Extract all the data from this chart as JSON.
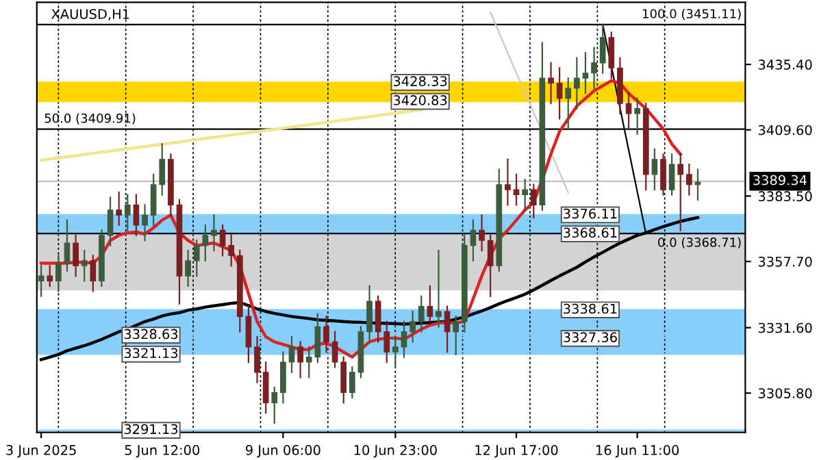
{
  "chart_data": {
    "type": "candlestick",
    "title": "XAUUSD,H1",
    "categories": [
      "3 Jun 2025",
      null,
      null,
      null,
      null,
      null,
      null,
      null,
      null,
      null,
      null,
      null,
      null,
      null,
      "5 Jun 12:00",
      null,
      null,
      null,
      null,
      null,
      null,
      null,
      null,
      null,
      null,
      null,
      null,
      null,
      "9 Jun 06:00",
      null,
      null,
      null,
      null,
      null,
      null,
      null,
      null,
      null,
      null,
      null,
      null,
      "10 Jun 23:00",
      null,
      null,
      null,
      null,
      null,
      null,
      null,
      null,
      null,
      null,
      null,
      null,
      null,
      "12 Jun 17:00",
      null,
      null,
      null,
      null,
      null,
      null,
      null,
      null,
      null,
      null,
      null,
      null,
      null,
      "16 Jun 11:00",
      null,
      null,
      null,
      null,
      null,
      null,
      null
    ],
    "ohlc": [
      [
        3350,
        3356,
        3344,
        3352
      ],
      [
        3352,
        3356,
        3348,
        3350
      ],
      [
        3350,
        3360,
        3346,
        3357
      ],
      [
        3357,
        3374,
        3354,
        3365
      ],
      [
        3365,
        3368,
        3352,
        3356
      ],
      [
        3356,
        3362,
        3350,
        3358
      ],
      [
        3358,
        3360,
        3346,
        3350
      ],
      [
        3350,
        3370,
        3348,
        3368
      ],
      [
        3368,
        3383,
        3364,
        3378
      ],
      [
        3378,
        3385,
        3372,
        3376
      ],
      [
        3376,
        3384,
        3370,
        3380
      ],
      [
        3380,
        3384,
        3368,
        3372
      ],
      [
        3372,
        3380,
        3366,
        3376
      ],
      [
        3376,
        3392,
        3372,
        3388
      ],
      [
        3388,
        3404,
        3384,
        3398
      ],
      [
        3398,
        3400,
        3376,
        3380
      ],
      [
        3380,
        3382,
        3341,
        3352
      ],
      [
        3352,
        3362,
        3348,
        3358
      ],
      [
        3358,
        3366,
        3352,
        3364
      ],
      [
        3364,
        3372,
        3358,
        3368
      ],
      [
        3368,
        3376,
        3362,
        3370
      ],
      [
        3370,
        3372,
        3360,
        3364
      ],
      [
        3364,
        3368,
        3356,
        3360
      ],
      [
        3360,
        3362,
        3330,
        3336
      ],
      [
        3336,
        3340,
        3318,
        3324
      ],
      [
        3324,
        3328,
        3310,
        3314
      ],
      [
        3314,
        3318,
        3298,
        3302
      ],
      [
        3302,
        3308,
        3294,
        3306
      ],
      [
        3306,
        3322,
        3302,
        3318
      ],
      [
        3318,
        3328,
        3314,
        3324
      ],
      [
        3324,
        3326,
        3312,
        3318
      ],
      [
        3318,
        3324,
        3312,
        3320
      ],
      [
        3320,
        3337,
        3318,
        3332
      ],
      [
        3332,
        3336,
        3322,
        3326
      ],
      [
        3326,
        3330,
        3316,
        3318
      ],
      [
        3318,
        3320,
        3302,
        3306
      ],
      [
        3306,
        3316,
        3304,
        3314
      ],
      [
        3314,
        3332,
        3312,
        3330
      ],
      [
        3330,
        3348,
        3326,
        3342
      ],
      [
        3342,
        3344,
        3326,
        3330
      ],
      [
        3330,
        3334,
        3318,
        3322
      ],
      [
        3322,
        3328,
        3316,
        3324
      ],
      [
        3324,
        3334,
        3320,
        3330
      ],
      [
        3330,
        3338,
        3326,
        3334
      ],
      [
        3334,
        3344,
        3330,
        3340
      ],
      [
        3340,
        3348,
        3334,
        3336
      ],
      [
        3336,
        3362,
        3332,
        3338
      ],
      [
        3338,
        3340,
        3322,
        3330
      ],
      [
        3330,
        3336,
        3321,
        3334
      ],
      [
        3334,
        3368,
        3330,
        3364
      ],
      [
        3364,
        3374,
        3358,
        3370
      ],
      [
        3370,
        3376,
        3362,
        3366
      ],
      [
        3366,
        3368,
        3344,
        3356
      ],
      [
        3356,
        3394,
        3354,
        3388
      ],
      [
        3388,
        3398,
        3380,
        3386
      ],
      [
        3386,
        3392,
        3380,
        3384
      ],
      [
        3384,
        3390,
        3378,
        3386
      ],
      [
        3386,
        3388,
        3375,
        3380
      ],
      [
        3380,
        3444,
        3378,
        3430
      ],
      [
        3430,
        3436,
        3420,
        3428
      ],
      [
        3428,
        3434,
        3414,
        3422
      ],
      [
        3422,
        3430,
        3410,
        3426
      ],
      [
        3426,
        3438,
        3418,
        3430
      ],
      [
        3430,
        3440,
        3424,
        3432
      ],
      [
        3432,
        3442,
        3426,
        3436
      ],
      [
        3436,
        3451,
        3432,
        3446
      ],
      [
        3446,
        3448,
        3430,
        3434
      ],
      [
        3434,
        3438,
        3416,
        3420
      ],
      [
        3420,
        3424,
        3410,
        3416
      ],
      [
        3416,
        3422,
        3408,
        3418
      ],
      [
        3418,
        3420,
        3386,
        3392
      ],
      [
        3392,
        3402,
        3386,
        3398
      ],
      [
        3398,
        3400,
        3384,
        3386
      ],
      [
        3386,
        3400,
        3384,
        3396
      ],
      [
        3396,
        3400,
        3370,
        3392
      ],
      [
        3392,
        3396,
        3384,
        3388
      ],
      [
        3388,
        3394,
        3382,
        3389
      ]
    ],
    "series": [
      {
        "type": "line",
        "color": "#f0e68c",
        "values": [
          3397.6,
          3398.1,
          3398.5,
          3399,
          3399.4,
          3399.9,
          3400.3,
          3400.8,
          3401.2,
          3401.7,
          3402.1,
          3402.6,
          3403,
          3403.5,
          3403.9,
          3404.4,
          3404.8,
          3405.3,
          3405.8,
          3406.2,
          3406.7,
          3407.1,
          3407.6,
          3408,
          3408.5,
          3408.9,
          3409.4,
          3409.8,
          3410.3,
          3410.7,
          3411.2,
          3411.6,
          3412.1,
          3412.5,
          3413,
          3413.5,
          3413.9,
          3414.4,
          3414.8,
          3415.3,
          3415.7,
          3416.2,
          3416.6,
          3417.1,
          3417.5,
          null,
          null,
          null,
          null,
          null,
          null,
          null,
          null,
          null,
          null,
          null,
          null,
          null,
          null,
          null,
          null,
          null,
          null,
          null,
          null,
          null,
          null,
          null,
          null,
          null,
          null,
          null,
          null,
          null,
          null,
          null,
          null
        ]
      },
      {
        "type": "line",
        "color": "#c8c8c8",
        "values": [
          null,
          null,
          null,
          null,
          null,
          null,
          null,
          null,
          null,
          null,
          null,
          null,
          null,
          null,
          null,
          null,
          null,
          null,
          null,
          null,
          null,
          null,
          null,
          null,
          null,
          null,
          null,
          null,
          null,
          null,
          null,
          null,
          null,
          null,
          null,
          null,
          null,
          null,
          null,
          null,
          null,
          null,
          null,
          null,
          null,
          null,
          null,
          null,
          null,
          null,
          null,
          null,
          3456,
          3448,
          3440,
          3432,
          3424.5,
          3416.5,
          3408.6,
          3400.7,
          3392.8,
          3384.9,
          null,
          null,
          null,
          null,
          null,
          null,
          null,
          null,
          null,
          null,
          null,
          null,
          null,
          null,
          null
        ]
      },
      {
        "type": "line",
        "color": "#000000",
        "values": [
          null,
          null,
          null,
          null,
          null,
          null,
          null,
          null,
          null,
          null,
          null,
          null,
          null,
          null,
          null,
          null,
          null,
          null,
          null,
          null,
          null,
          null,
          null,
          null,
          null,
          null,
          null,
          null,
          null,
          null,
          null,
          null,
          null,
          null,
          null,
          null,
          null,
          null,
          null,
          null,
          null,
          null,
          null,
          null,
          null,
          null,
          null,
          null,
          null,
          null,
          null,
          null,
          null,
          null,
          null,
          null,
          null,
          null,
          null,
          null,
          null,
          null,
          null,
          null,
          null,
          3451.11,
          3434.6,
          3418.2,
          3401.7,
          3385.2,
          3368.71,
          null,
          null,
          null,
          null,
          null,
          null
        ]
      },
      {
        "type": "line",
        "color": "#000000",
        "values": [
          3319,
          3320,
          3321,
          3322.5,
          3323.5,
          3324.5,
          3325.7,
          3327,
          3328.5,
          3330,
          3331,
          3332.5,
          3334,
          3335,
          3336.2,
          3337,
          3337.5,
          3338.5,
          3339,
          3339.7,
          3340.2,
          3340.7,
          3341.2,
          3341.5,
          3340.3,
          3339,
          3338,
          3337.2,
          3336.6,
          3336,
          3335.6,
          3335.2,
          3334.7,
          3334.5,
          3334.3,
          3334,
          3333.8,
          3333.7,
          3333.5,
          3333.4,
          3333.3,
          3333.2,
          3333,
          3333.2,
          3333.4,
          3333.6,
          3333.8,
          3334,
          3335,
          3335.8,
          3337,
          3338.2,
          3339.5,
          3341,
          3342.3,
          3343.5,
          3344.8,
          3346.5,
          3348.3,
          3350.2,
          3352,
          3353.7,
          3355.4,
          3357.5,
          3359.5,
          3361.3,
          3363.2,
          3365,
          3366.5,
          3368,
          3369,
          3370.3,
          3371.4,
          3372.5,
          3373.5,
          3374.3,
          3375
        ]
      },
      {
        "type": "line",
        "color": "#dd2222",
        "values": [
          3357,
          3357,
          3357,
          3357,
          3357.5,
          3357.3,
          3357.1,
          3360,
          3366,
          3368,
          3369,
          3369.3,
          3368.5,
          3371,
          3374,
          3376,
          3369,
          3366,
          3364,
          3364.5,
          3365,
          3363.5,
          3362,
          3356,
          3345,
          3334,
          3328,
          3326,
          3325,
          3324,
          3323,
          3323,
          3325,
          3325.5,
          3324,
          3322,
          3320,
          3323,
          3326,
          3327,
          3327.5,
          3327.5,
          3327,
          3329,
          3331,
          3332.5,
          3333.5,
          3333.5,
          3333.5,
          3334,
          3343,
          3352,
          3360,
          3366.6,
          3370,
          3374,
          3378,
          3381,
          3390,
          3400,
          3409,
          3414,
          3419,
          3422,
          3425,
          3427,
          3429,
          3428,
          3424,
          3421,
          3418,
          3414,
          3410,
          3404,
          3400,
          null,
          null
        ]
      }
    ],
    "ylim": [
      3290.3,
      3459.9
    ],
    "grid": "x",
    "yticks": [
      {
        "value": 3435.4,
        "label": "3435.40"
      },
      {
        "value": 3409.6,
        "label": "3409.60"
      },
      {
        "value": 3383.5,
        "label": "3383.50"
      },
      {
        "value": 3357.7,
        "label": "3357.70"
      },
      {
        "value": 3331.6,
        "label": "3331.60"
      },
      {
        "value": 3305.8,
        "label": "3305.80"
      }
    ],
    "bands": [
      {
        "axis": "y",
        "from": 3346.3,
        "to": 3368.2,
        "color": "#d3d3d3"
      },
      {
        "axis": "y",
        "from": 3420.83,
        "to": 3428.33,
        "color": "#ffd700"
      },
      {
        "axis": "y",
        "from": 3321.13,
        "to": 3328.63,
        "color": "#87cefa"
      },
      {
        "axis": "y",
        "from": 3368.61,
        "to": 3376.11,
        "color": "#87cefa"
      },
      {
        "axis": "y",
        "from": 3327.36,
        "to": 3338.61,
        "color": "#87cefa"
      }
    ],
    "ref_lines": [
      {
        "axis": "y",
        "value": 3389.34,
        "label": "3389.34",
        "color": "#c0c0c0"
      },
      {
        "axis": "y",
        "value": 3428.33,
        "label": "3428.33",
        "color": "#ffd700"
      },
      {
        "axis": "y",
        "value": 3420.83,
        "label": "3420.83",
        "color": "#ffd700"
      },
      {
        "axis": "y",
        "value": 3328.63,
        "label": "3328.63",
        "color": "#87cefa"
      },
      {
        "axis": "y",
        "value": 3321.13,
        "label": "3321.13",
        "color": "#87cefa"
      },
      {
        "axis": "y",
        "value": 3291.13,
        "label": "3291.13",
        "color": "#87cefa"
      },
      {
        "axis": "y",
        "value": 3376.11,
        "label": "3376.11",
        "color": "#87cefa"
      },
      {
        "axis": "y",
        "value": 3368.61,
        "label": "3368.61",
        "color": "#87cefa"
      },
      {
        "axis": "y",
        "value": 3338.61,
        "label": "3338.61",
        "color": "#87cefa"
      },
      {
        "axis": "y",
        "value": 3327.36,
        "label": "3327.36",
        "color": "#87cefa"
      },
      {
        "axis": "y",
        "value": 3451.11,
        "label": "100.0 (3451.11)",
        "color": "#000000"
      },
      {
        "axis": "y",
        "value": 3409.91,
        "label": "50.0 (3409.91)",
        "color": "#000000"
      },
      {
        "axis": "y",
        "value": 3368.71,
        "label": "0.0 (3368.71)",
        "color": "#000000"
      }
    ]
  }
}
